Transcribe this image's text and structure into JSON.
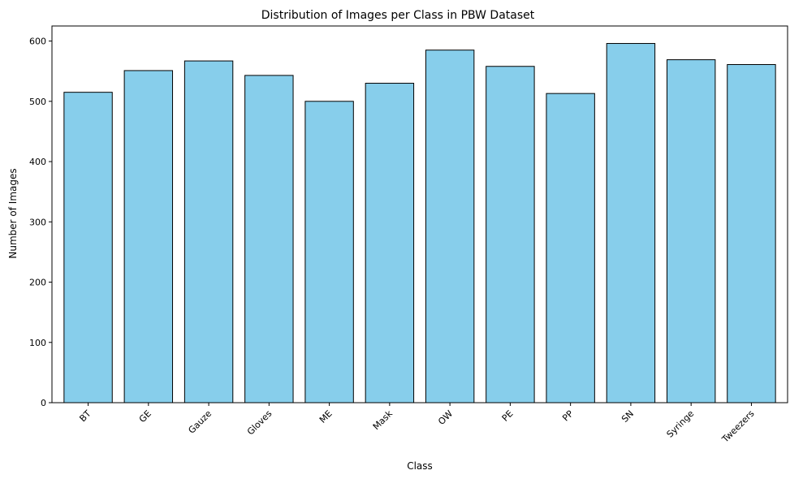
{
  "chart_data": {
    "type": "bar",
    "title": "Distribution of Images per Class in PBW Dataset",
    "xlabel": "Class",
    "ylabel": "Number of Images",
    "categories": [
      "BT",
      "GE",
      "Gauze",
      "Gloves",
      "ME",
      "Mask",
      "OW",
      "PE",
      "PP",
      "SN",
      "Syringe",
      "Tweezers"
    ],
    "values": [
      515,
      551,
      567,
      543,
      500,
      530,
      585,
      558,
      513,
      596,
      569,
      561
    ],
    "ylim": [
      0,
      625
    ],
    "yticks": [
      0,
      100,
      200,
      300,
      400,
      500,
      600
    ],
    "grid": false,
    "colors": {
      "bar_fill": "#87ceeb",
      "bar_edge": "#000000"
    },
    "xtick_rotation": 45
  }
}
